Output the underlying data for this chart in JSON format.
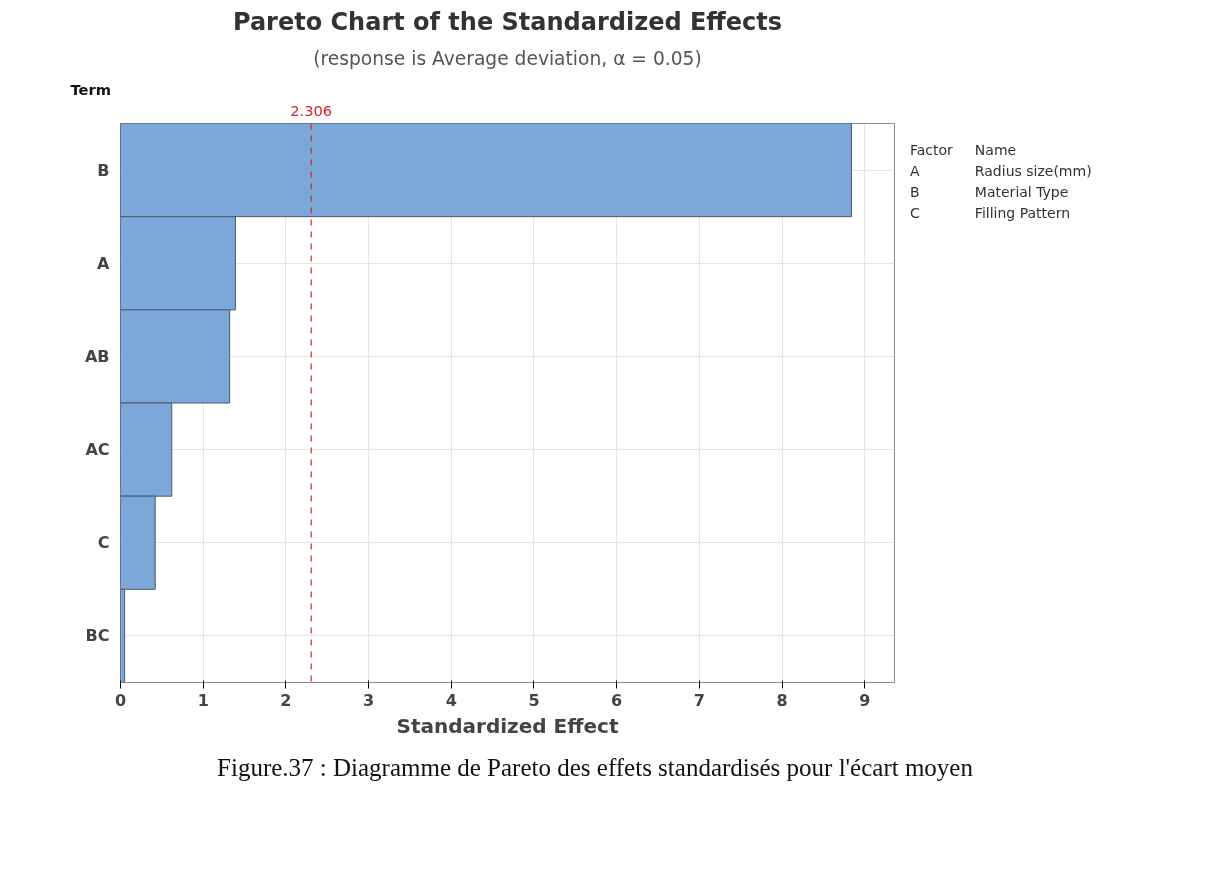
{
  "chart_data": {
    "type": "bar",
    "orientation": "horizontal",
    "title": "Pareto Chart of the Standardized Effects",
    "subtitle": "(response is Average deviation, α = 0.05)",
    "xlabel": "Standardized Effect",
    "ylabel": "Term",
    "categories": [
      "B",
      "A",
      "AB",
      "AC",
      "C",
      "BC"
    ],
    "values": [
      8.84,
      1.39,
      1.32,
      0.62,
      0.42,
      0.05
    ],
    "color": "#7ba7d9",
    "xlim": [
      0,
      9.36
    ],
    "xticks": [
      0,
      1,
      2,
      3,
      4,
      5,
      6,
      7,
      8,
      9
    ],
    "grid": true,
    "ref_lines": [
      {
        "axis": "x",
        "value": 2.306,
        "label": "2.306",
        "color": "#d62728",
        "line_style": "dashed"
      }
    ],
    "annotations": [
      "Factor\tName",
      "A\tRadius size(mm)",
      "B\tMaterial Type",
      "C\tFilling Pattern",
      "Figure.37 : Diagramme de Pareto des effets standardisés pour l'écart moyen"
    ]
  }
}
